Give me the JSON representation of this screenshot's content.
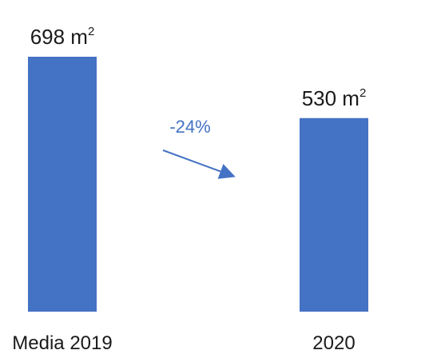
{
  "chart_data": {
    "type": "bar",
    "categories": [
      "Media 2019",
      "2020"
    ],
    "values": [
      698,
      530
    ],
    "data_labels": [
      "698 m",
      "530 m"
    ],
    "unit_superscript": "2",
    "annotation": "-24%",
    "bar_color": "#4472c4",
    "arrow_color": "#4472c4",
    "title": "",
    "xlabel": "",
    "ylabel": "",
    "ylim": [
      0,
      698
    ],
    "grid": false,
    "legend": "none"
  }
}
